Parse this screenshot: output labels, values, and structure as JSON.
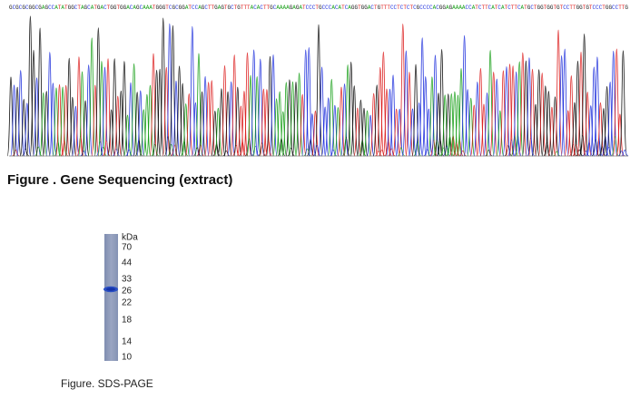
{
  "sequence": "GCGCGCGGCGAGCCATATGGCTAGCATGACTGGTGGACAGCAAATGGGTCGCGGATCCAGCTTGAGTGCTGTTTACACTTGCAAAAGAGATCCCTGCCCACATCAGGTGGACTGTTTCCTCTCTCGCCCCACGGAGAAAACCATCTTCATCATCTTCATGCTGGTGGTGTCCTTGGTGTCCCTGGCCTTG",
  "sequencing_caption": "Figure . Gene Sequencing (extract)",
  "gel": {
    "unit": "kDa",
    "markers": [
      "70",
      "44",
      "33",
      "26",
      "22",
      "18",
      "14",
      "10"
    ]
  },
  "gel_caption": "Figure. SDS-PAGE"
}
